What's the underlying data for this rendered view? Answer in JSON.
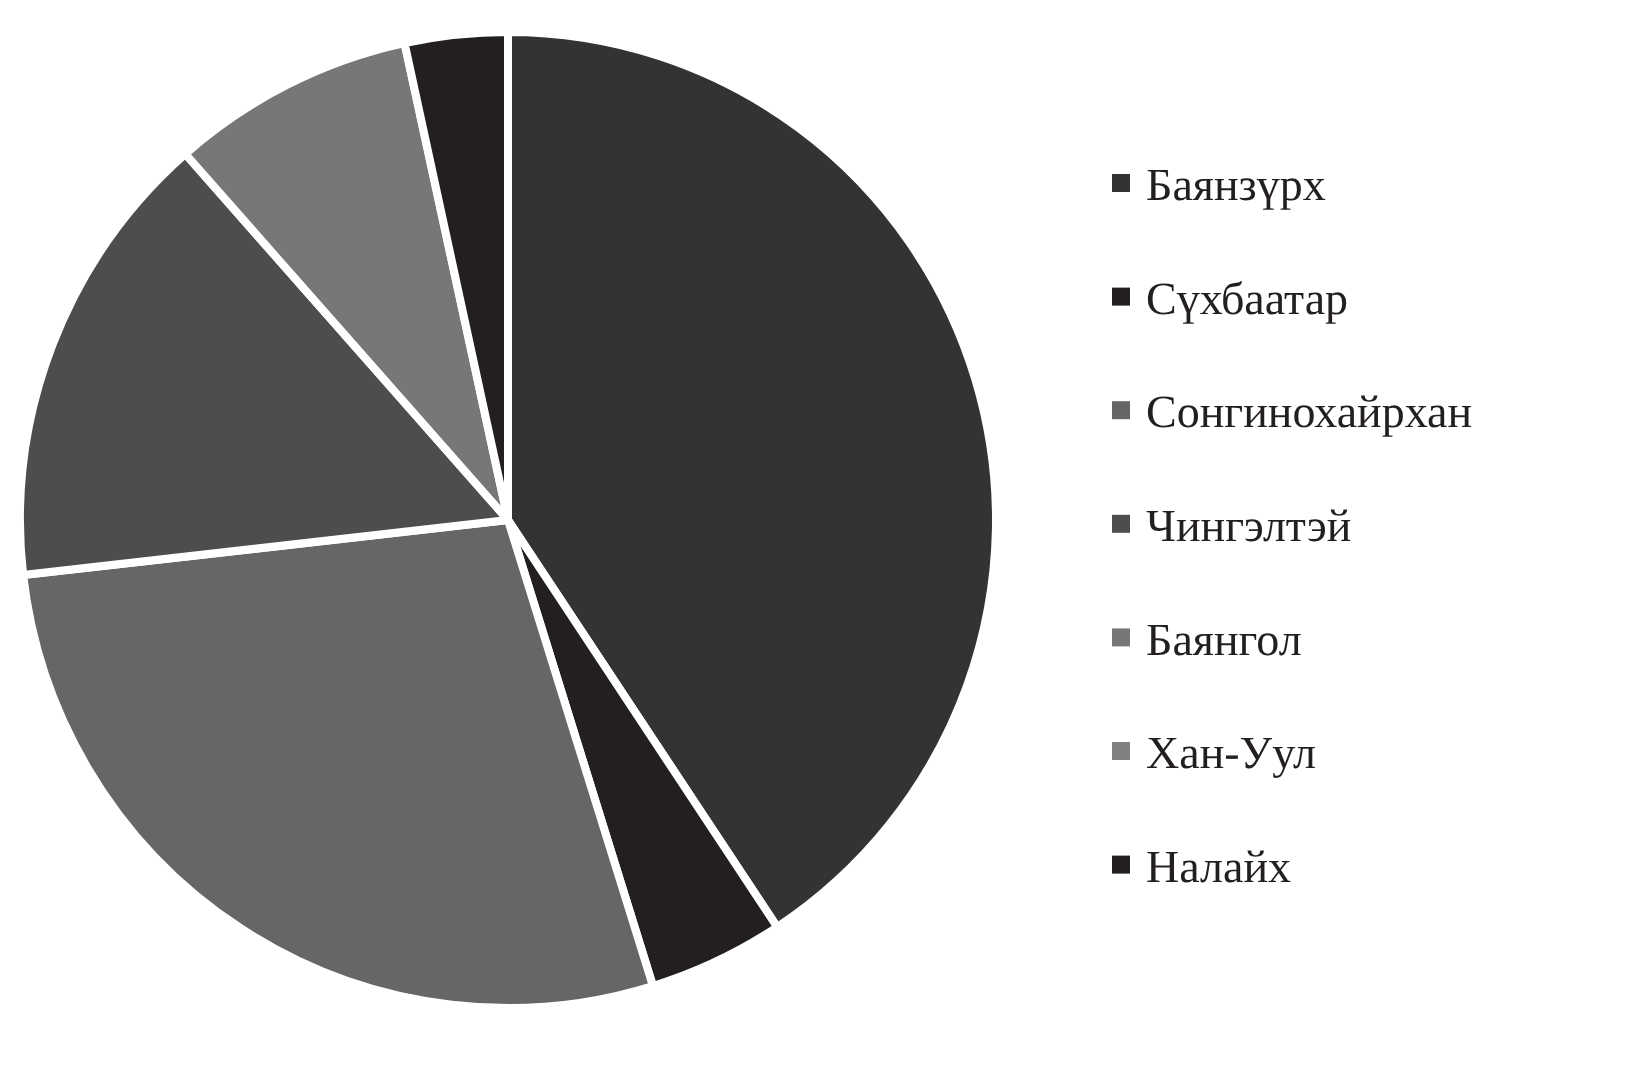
{
  "chart_data": {
    "type": "pie",
    "categories": [
      "Баянзүрх",
      "Сүхбаатар",
      "Сонгинохайрхан",
      "Чингэлтэй",
      "Баянгол",
      "Хан-Уул",
      "Налайх"
    ],
    "values": [
      40.7,
      4.5,
      28.0,
      15.3,
      8.1,
      0,
      3.4
    ],
    "colors": [
      "#333333",
      "#231f20",
      "#666666",
      "#4d4d4d",
      "#777777",
      "#808080",
      "#231f20"
    ],
    "legend": "right"
  }
}
